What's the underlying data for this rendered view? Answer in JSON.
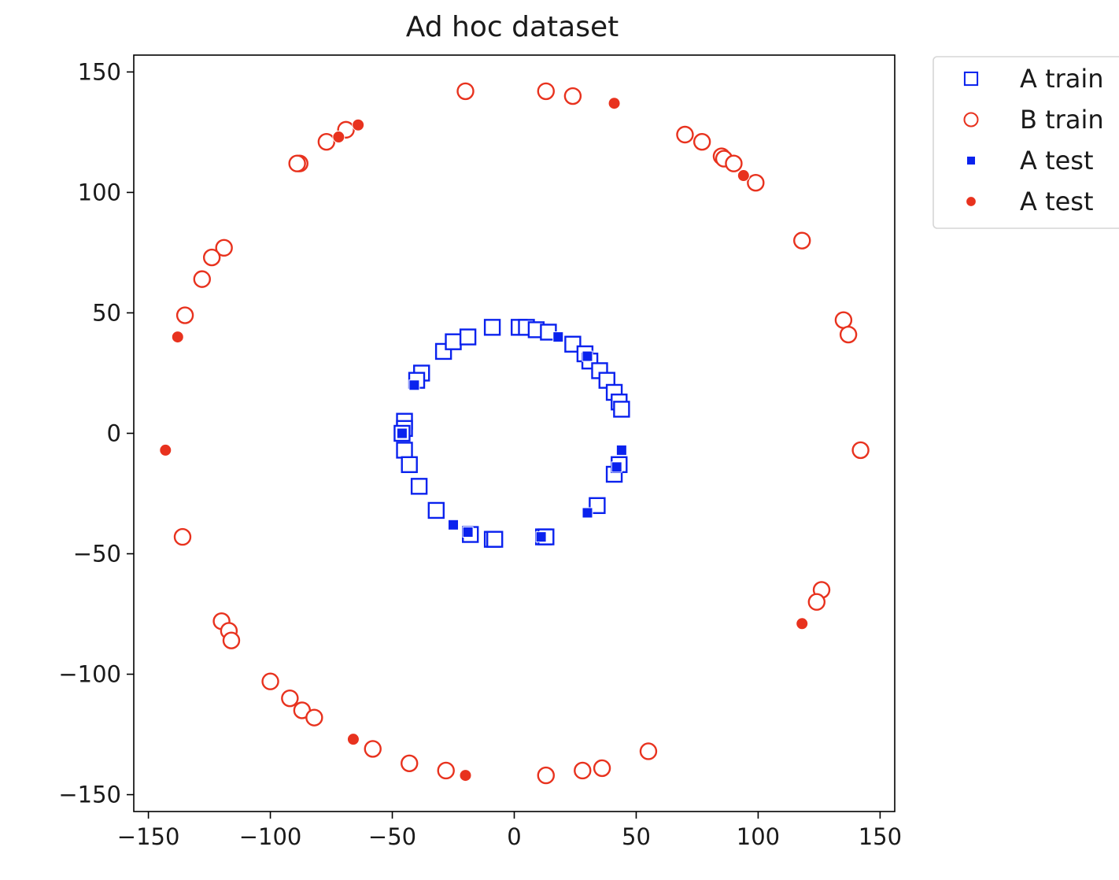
{
  "chart_data": {
    "type": "scatter",
    "title": "Ad hoc dataset",
    "xlabel": "",
    "ylabel": "",
    "xlim": [
      -156,
      156
    ],
    "ylim": [
      -157,
      157
    ],
    "xticks": [
      -150,
      -100,
      -50,
      0,
      50,
      100,
      150
    ],
    "yticks": [
      150,
      100,
      50,
      0,
      -50,
      -100,
      -150
    ],
    "xtick_labels": [
      "−150",
      "−100",
      "−50",
      "0",
      "50",
      "100",
      "150"
    ],
    "ytick_labels": [
      "150",
      "100",
      "50",
      "0",
      "−50",
      "−100",
      "−150"
    ],
    "grid": false,
    "legend_position": "outside-top-right",
    "series": [
      {
        "name": "A train",
        "marker": "square-open",
        "color": "#0a22ee",
        "points": [
          [
            -9,
            44
          ],
          [
            2,
            44
          ],
          [
            5,
            44
          ],
          [
            9,
            43
          ],
          [
            14,
            42
          ],
          [
            24,
            37
          ],
          [
            29,
            33
          ],
          [
            31,
            30
          ],
          [
            35,
            26
          ],
          [
            38,
            22
          ],
          [
            41,
            17
          ],
          [
            43,
            13
          ],
          [
            44,
            10
          ],
          [
            -29,
            34
          ],
          [
            -25,
            38
          ],
          [
            -19,
            40
          ],
          [
            -38,
            25
          ],
          [
            -40,
            22
          ],
          [
            -45,
            5
          ],
          [
            -45,
            2
          ],
          [
            -46,
            0
          ],
          [
            -45,
            -7
          ],
          [
            -43,
            -13
          ],
          [
            -39,
            -22
          ],
          [
            -32,
            -32
          ],
          [
            -18,
            -42
          ],
          [
            -9,
            -44
          ],
          [
            -8,
            -44
          ],
          [
            12,
            -43
          ],
          [
            13,
            -43
          ],
          [
            34,
            -30
          ],
          [
            41,
            -17
          ],
          [
            43,
            -13
          ]
        ]
      },
      {
        "name": "B train",
        "marker": "circle-open",
        "color": "#e8321e",
        "points": [
          [
            -20,
            142
          ],
          [
            13,
            142
          ],
          [
            24,
            140
          ],
          [
            -69,
            126
          ],
          [
            -77,
            121
          ],
          [
            -88,
            112
          ],
          [
            -89,
            112
          ],
          [
            70,
            124
          ],
          [
            77,
            121
          ],
          [
            85,
            115
          ],
          [
            86,
            114
          ],
          [
            90,
            112
          ],
          [
            99,
            104
          ],
          [
            118,
            80
          ],
          [
            -119,
            77
          ],
          [
            -124,
            73
          ],
          [
            -128,
            64
          ],
          [
            -135,
            49
          ],
          [
            135,
            47
          ],
          [
            137,
            41
          ],
          [
            142,
            -7
          ],
          [
            -136,
            -43
          ],
          [
            126,
            -65
          ],
          [
            124,
            -70
          ],
          [
            -120,
            -78
          ],
          [
            -117,
            -82
          ],
          [
            -116,
            -86
          ],
          [
            -100,
            -103
          ],
          [
            -92,
            -110
          ],
          [
            -87,
            -115
          ],
          [
            -82,
            -118
          ],
          [
            -58,
            -131
          ],
          [
            -43,
            -137
          ],
          [
            -28,
            -140
          ],
          [
            13,
            -142
          ],
          [
            28,
            -140
          ],
          [
            36,
            -139
          ],
          [
            55,
            -132
          ]
        ]
      },
      {
        "name": "A test",
        "marker": "square-filled",
        "color": "#0a22ee",
        "points": [
          [
            18,
            40
          ],
          [
            30,
            32
          ],
          [
            -41,
            20
          ],
          [
            -46,
            0
          ],
          [
            44,
            -7
          ],
          [
            42,
            -14
          ],
          [
            30,
            -33
          ],
          [
            -25,
            -38
          ],
          [
            -19,
            -41
          ],
          [
            11,
            -43
          ]
        ]
      },
      {
        "name": "A test",
        "marker": "circle-filled",
        "color": "#e8321e",
        "points": [
          [
            41,
            137
          ],
          [
            -64,
            128
          ],
          [
            -72,
            123
          ],
          [
            94,
            107
          ],
          [
            -138,
            40
          ],
          [
            -143,
            -7
          ],
          [
            118,
            -79
          ],
          [
            -66,
            -127
          ],
          [
            -20,
            -142
          ]
        ]
      }
    ]
  }
}
